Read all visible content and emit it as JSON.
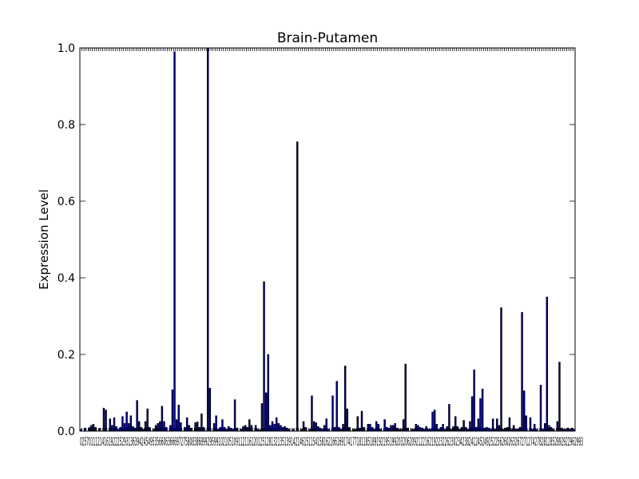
{
  "chart_data": {
    "type": "bar",
    "title": "Brain-Putamen",
    "xlabel": "",
    "ylabel": "Expression Level",
    "ylim": [
      0,
      1.0
    ],
    "yticks": [
      "0.0",
      "0.2",
      "0.4",
      "0.6",
      "0.8",
      "1.0"
    ],
    "x_tick_text": "0257011121416192225293136394245495356606366697275808386899295991021051091121161201251281321351391421461511541581621661691741771811851891921951992032062092122162192232262302342382412452492522562602632672712742782812852892922962993",
    "bar_color": "#00008b",
    "values": [
      0.005,
      0.0,
      0.008,
      0.0,
      0.009,
      0.015,
      0.018,
      0.01,
      0.0,
      0.007,
      0.0,
      0.06,
      0.055,
      0.0,
      0.032,
      0.015,
      0.035,
      0.012,
      0.005,
      0.01,
      0.038,
      0.02,
      0.05,
      0.02,
      0.04,
      0.012,
      0.008,
      0.08,
      0.025,
      0.01,
      0.005,
      0.025,
      0.058,
      0.01,
      0.0,
      0.005,
      0.015,
      0.02,
      0.025,
      0.065,
      0.025,
      0.01,
      0.0,
      0.015,
      0.108,
      0.99,
      0.03,
      0.068,
      0.022,
      0.0,
      0.01,
      0.035,
      0.015,
      0.008,
      0.0,
      0.022,
      0.024,
      0.01,
      0.045,
      0.01,
      0.0,
      1.0,
      0.112,
      0.0,
      0.02,
      0.04,
      0.005,
      0.01,
      0.03,
      0.01,
      0.005,
      0.012,
      0.008,
      0.005,
      0.082,
      0.008,
      0.0,
      0.005,
      0.012,
      0.015,
      0.01,
      0.03,
      0.015,
      0.0,
      0.015,
      0.005,
      0.003,
      0.072,
      0.39,
      0.1,
      0.2,
      0.015,
      0.025,
      0.018,
      0.035,
      0.02,
      0.015,
      0.01,
      0.012,
      0.008,
      0.005,
      0.0,
      0.005,
      0.0,
      0.755,
      0.0,
      0.005,
      0.025,
      0.01,
      0.0,
      0.005,
      0.092,
      0.025,
      0.022,
      0.012,
      0.008,
      0.005,
      0.015,
      0.032,
      0.005,
      0.0,
      0.092,
      0.01,
      0.13,
      0.01,
      0.005,
      0.018,
      0.17,
      0.058,
      0.01,
      0.0,
      0.005,
      0.005,
      0.038,
      0.008,
      0.052,
      0.01,
      0.0,
      0.018,
      0.018,
      0.01,
      0.005,
      0.025,
      0.018,
      0.005,
      0.0,
      0.03,
      0.01,
      0.008,
      0.015,
      0.015,
      0.02,
      0.008,
      0.005,
      0.005,
      0.03,
      0.175,
      0.008,
      0.0,
      0.005,
      0.005,
      0.018,
      0.015,
      0.01,
      0.008,
      0.005,
      0.012,
      0.005,
      0.005,
      0.05,
      0.055,
      0.018,
      0.005,
      0.01,
      0.018,
      0.005,
      0.012,
      0.07,
      0.005,
      0.012,
      0.038,
      0.012,
      0.005,
      0.01,
      0.028,
      0.01,
      0.005,
      0.025,
      0.09,
      0.16,
      0.01,
      0.032,
      0.085,
      0.11,
      0.008,
      0.01,
      0.008,
      0.005,
      0.032,
      0.005,
      0.032,
      0.015,
      0.322,
      0.005,
      0.008,
      0.01,
      0.035,
      0.005,
      0.015,
      0.005,
      0.005,
      0.01,
      0.31,
      0.105,
      0.04,
      0.0,
      0.035,
      0.005,
      0.018,
      0.005,
      0.0,
      0.12,
      0.005,
      0.02,
      0.35,
      0.015,
      0.01,
      0.005,
      0.0,
      0.025,
      0.18,
      0.008,
      0.005,
      0.005,
      0.008,
      0.005,
      0.008,
      0.005
    ]
  }
}
